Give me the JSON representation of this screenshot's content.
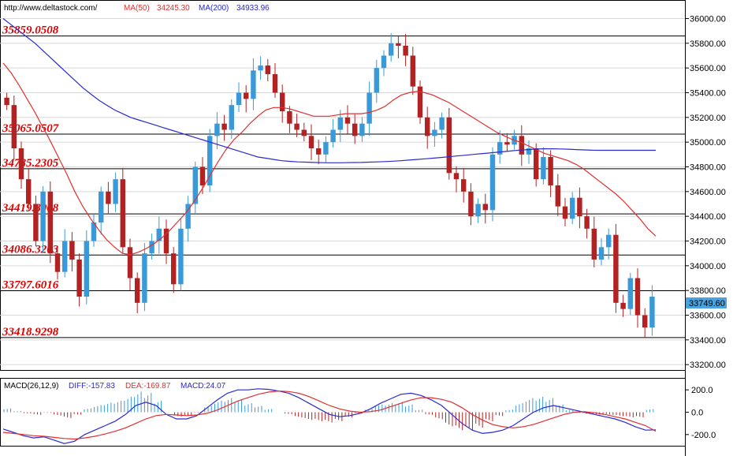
{
  "header": {
    "site": "http://www.deltastock.com/",
    "ma50_label": "MA(50)",
    "ma50_value": "34245.30",
    "ma200_label": "MA(200)",
    "ma200_value": "34933.96"
  },
  "macd_header": {
    "name": "MACD(26,12,9)",
    "diff": "DIFF:-157.83",
    "dea": "DEA:-169.87",
    "macd": "MACD:24.07"
  },
  "current_price": "33749.60",
  "colors": {
    "up": "#3a9ad9",
    "down": "#b22222",
    "ma50": "#e03030",
    "ma200": "#2a2ad0",
    "level": "#000000",
    "level_text": "#e00000",
    "price_tag": "#4aa3df"
  },
  "chart_data": [
    {
      "type": "candlestick",
      "ylim": [
        33150,
        36150
      ],
      "y_ticks": [
        "36000.00",
        "35800.00",
        "35600.00",
        "35400.00",
        "35200.00",
        "35000.00",
        "34800.00",
        "34600.00",
        "34400.00",
        "34200.00",
        "34000.00",
        "33800.00",
        "33600.00",
        "33400.00",
        "33200.00"
      ],
      "levels": [
        "35859.0508",
        "35065.0507",
        "34785.2305",
        "34419.8008",
        "34086.3203",
        "33797.6016",
        "33418.9298"
      ],
      "series": [
        {
          "name": "MA(50)",
          "values": [
            35640,
            35560,
            35460,
            35350,
            35240,
            35120,
            35000,
            34870,
            34740,
            34600,
            34480,
            34380,
            34290,
            34210,
            34150,
            34100,
            34090,
            34110,
            34140,
            34180,
            34230,
            34290,
            34360,
            34430,
            34520,
            34620,
            34730,
            34840,
            34940,
            35020,
            35080,
            35150,
            35210,
            35260,
            35280,
            35280,
            35270,
            35250,
            35230,
            35210,
            35210,
            35210,
            35220,
            35230,
            35230,
            35230,
            35240,
            35260,
            35290,
            35340,
            35380,
            35400,
            35410,
            35400,
            35380,
            35350,
            35320,
            35280,
            35240,
            35200,
            35160,
            35120,
            35080,
            35050,
            35020,
            35000,
            34970,
            34940,
            34910,
            34890,
            34870,
            34850,
            34820,
            34780,
            34730,
            34680,
            34630,
            34580,
            34520,
            34450,
            34380,
            34300,
            34240
          ]
        },
        {
          "name": "MA(200)",
          "values": [
            36000,
            35950,
            35900,
            35850,
            35800,
            35740,
            35680,
            35620,
            35560,
            35500,
            35440,
            35390,
            35340,
            35300,
            35260,
            35230,
            35200,
            35180,
            35160,
            35140,
            35120,
            35100,
            35080,
            35060,
            35040,
            35020,
            35000,
            34980,
            34960,
            34940,
            34920,
            34900,
            34880,
            34870,
            34860,
            34850,
            34845,
            34840,
            34838,
            34836,
            34834,
            34833,
            34833,
            34834,
            34835,
            34836,
            34838,
            34840,
            34843,
            34846,
            34850,
            34855,
            34860,
            34865,
            34870,
            34876,
            34882,
            34888,
            34894,
            34900,
            34906,
            34912,
            34918,
            34924,
            34930,
            34936,
            34940,
            34944,
            34946,
            34946,
            34945,
            34943,
            34940,
            34937,
            34935,
            34934,
            34934,
            34934,
            34934,
            34934,
            34934,
            34934,
            34934
          ]
        }
      ],
      "closes": [
        35300,
        34950,
        34700,
        34500,
        34200,
        34600,
        34100,
        33950,
        34200,
        34050,
        33750,
        34200,
        34350,
        34600,
        34500,
        34700,
        34150,
        33900,
        33700,
        34100,
        34200,
        34300,
        34100,
        33850,
        34300,
        34500,
        34800,
        34650,
        35050,
        35150,
        35100,
        35300,
        35400,
        35350,
        35580,
        35620,
        35550,
        35400,
        35250,
        35150,
        35100,
        35050,
        34950,
        34900,
        35000,
        35100,
        35200,
        35150,
        35050,
        35150,
        35400,
        35600,
        35700,
        35800,
        35780,
        35700,
        35450,
        35200,
        35050,
        35100,
        35200,
        34750,
        34700,
        34600,
        34400,
        34500,
        34450,
        34900,
        35000,
        34980,
        35050,
        34900,
        34950,
        34700,
        34880,
        34650,
        34480,
        34380,
        34550,
        34400,
        34300,
        34050,
        34150,
        34250,
        33700,
        33650,
        33900,
        33600,
        33500,
        33750
      ],
      "last": 33749.6
    },
    {
      "type": "bar+line",
      "name": "MACD(26,12,9)",
      "ylim": [
        -300,
        300
      ],
      "y_ticks": [
        "200.0",
        "0.0",
        "-200.0"
      ],
      "series": [
        {
          "name": "DIFF",
          "values": [
            -150,
            -180,
            -210,
            -230,
            -220,
            -250,
            -280,
            -260,
            -200,
            -160,
            -120,
            -80,
            -20,
            60,
            90,
            60,
            -20,
            -60,
            -60,
            -30,
            40,
            110,
            170,
            200,
            200,
            210,
            205,
            190,
            170,
            130,
            80,
            30,
            -20,
            -40,
            -30,
            -10,
            30,
            80,
            120,
            160,
            170,
            150,
            110,
            60,
            -20,
            -100,
            -160,
            -190,
            -180,
            -160,
            -120,
            -60,
            0,
            40,
            60,
            40,
            20,
            0,
            -20,
            -40,
            -60,
            -90,
            -130,
            -160,
            -157.83
          ]
        },
        {
          "name": "DEA",
          "values": [
            -180,
            -190,
            -200,
            -210,
            -215,
            -225,
            -235,
            -240,
            -230,
            -215,
            -195,
            -170,
            -140,
            -100,
            -60,
            -30,
            -20,
            -25,
            -30,
            -25,
            -10,
            20,
            60,
            100,
            130,
            160,
            180,
            190,
            185,
            170,
            140,
            100,
            60,
            30,
            10,
            0,
            5,
            20,
            50,
            80,
            110,
            130,
            130,
            115,
            90,
            40,
            -20,
            -70,
            -110,
            -130,
            -140,
            -130,
            -110,
            -80,
            -50,
            -20,
            0,
            5,
            -5,
            -20,
            -40,
            -60,
            -90,
            -120,
            -169.87
          ]
        },
        {
          "name": "MACD",
          "values": [
            30,
            10,
            -10,
            -20,
            -5,
            -25,
            -45,
            -20,
            30,
            55,
            75,
            90,
            120,
            160,
            150,
            90,
            0,
            -35,
            -30,
            -5,
            50,
            90,
            110,
            100,
            70,
            50,
            25,
            0,
            -15,
            -40,
            -60,
            -70,
            -80,
            -70,
            -40,
            -10,
            25,
            60,
            70,
            80,
            60,
            20,
            -20,
            -55,
            -110,
            -140,
            -140,
            -120,
            -70,
            -30,
            20,
            70,
            110,
            120,
            110,
            60,
            20,
            -5,
            -15,
            -20,
            -20,
            -30,
            -40,
            -40,
            24.07
          ]
        }
      ]
    }
  ]
}
